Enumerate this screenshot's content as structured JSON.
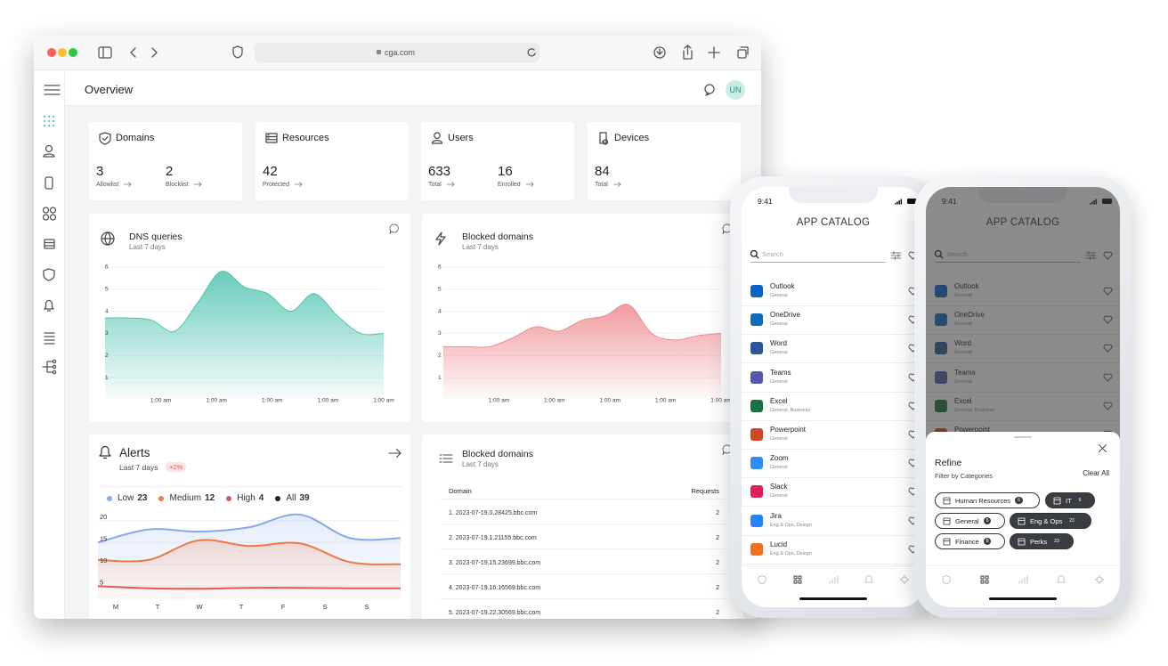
{
  "browser": {
    "url": "cga.com"
  },
  "header": {
    "title": "Overview",
    "avatar": "UN"
  },
  "stats": [
    {
      "title": "Domains",
      "items": [
        {
          "value": 3,
          "label": "Allowlist"
        },
        {
          "value": 2,
          "label": "Blocklist"
        }
      ]
    },
    {
      "title": "Resources",
      "items": [
        {
          "value": 42,
          "label": "Protected"
        }
      ]
    },
    {
      "title": "Users",
      "items": [
        {
          "value": 633,
          "label": "Total"
        },
        {
          "value": 16,
          "label": "Enrolled"
        }
      ]
    },
    {
      "title": "Devices",
      "items": [
        {
          "value": 84,
          "label": "Total"
        }
      ]
    }
  ],
  "dns_chart": {
    "type": "area",
    "title": "DNS queries",
    "subtitle": "Last 7 days",
    "x_labels": [
      "1:00 am",
      "1:00 am",
      "1:00 am",
      "1:00 am",
      "1:00 am"
    ],
    "values": [
      3.7,
      3.7,
      3.6,
      3.1,
      4.4,
      5.8,
      5.1,
      4.8,
      4.0,
      4.8,
      3.8,
      3.0,
      3.0
    ],
    "ylim": [
      0,
      6.4
    ],
    "yticks": [
      1,
      2,
      3,
      4,
      5,
      6
    ],
    "grid": true,
    "color": "#4fc3b0"
  },
  "blocked_chart": {
    "type": "area",
    "title": "Blocked domains",
    "subtitle": "Last 7 days",
    "x_labels": [
      "1:00 am",
      "1:00 am",
      "1:00 am",
      "1:00 am",
      "1:00 am"
    ],
    "values": [
      2.4,
      2.4,
      2.4,
      2.8,
      3.3,
      3.1,
      3.6,
      3.8,
      4.3,
      3.0,
      2.7,
      2.9,
      3.0
    ],
    "ylim": [
      0,
      6.4
    ],
    "yticks": [
      1,
      2,
      3,
      4,
      5,
      6
    ],
    "grid": true,
    "color": "#ee8a8f"
  },
  "alerts": {
    "title": "Alerts",
    "subtitle": "Last 7 days",
    "badge": "+2%",
    "chart": {
      "type": "line",
      "categories": [
        "M",
        "T",
        "W",
        "T",
        "F",
        "S",
        "S"
      ],
      "ylim": [
        2,
        22
      ],
      "yticks": [
        5,
        10,
        15,
        20
      ],
      "grid": true,
      "series": [
        {
          "name": "Low",
          "count": 23,
          "color": "#86a9ec",
          "values": [
            15,
            18,
            17.5,
            18.5,
            21.4,
            16,
            16
          ]
        },
        {
          "name": "Medium",
          "count": 12,
          "color": "#ed7a45",
          "values": [
            11,
            11,
            15.5,
            14.2,
            14.8,
            10.5,
            10
          ]
        },
        {
          "name": "High",
          "count": 4,
          "color": "#e05a5a",
          "values": [
            5,
            4.5,
            4.4,
            4.6,
            4.6,
            4.5,
            4.5
          ]
        }
      ],
      "total": {
        "name": "All",
        "count": 39,
        "color": "#222222"
      }
    }
  },
  "blocked_table": {
    "title": "Blocked domains",
    "subtitle": "Last 7 days",
    "columns": [
      "Domain",
      "Requests"
    ],
    "rows": [
      [
        "1. 2023-07-19.0.28425.bbc.com",
        2
      ],
      [
        "2. 2023-07-19.1.21155.bbc.com",
        2
      ],
      [
        "3. 2023-07-19.15.23699.bbc.com",
        2
      ],
      [
        "4. 2023-07-19.16.16569.bbc.com",
        2
      ],
      [
        "5. 2023-07-19.22.30569.bbc.com",
        2
      ]
    ]
  },
  "catalog": {
    "time": "9:41",
    "title": "APP CATALOG",
    "search": "Search",
    "apps": [
      {
        "name": "Outlook",
        "category": "General",
        "color": "#0a64c8"
      },
      {
        "name": "OneDrive",
        "category": "General",
        "color": "#0f6cbd"
      },
      {
        "name": "Word",
        "category": "General",
        "color": "#2b579a"
      },
      {
        "name": "Teams",
        "category": "General",
        "color": "#5558af"
      },
      {
        "name": "Excel",
        "category": "General, Business",
        "color": "#1d7044"
      },
      {
        "name": "Powerpoint",
        "category": "General",
        "color": "#d24726"
      },
      {
        "name": "Zoom",
        "category": "General",
        "color": "#2d8cff"
      },
      {
        "name": "Slack",
        "category": "General",
        "color": "#e01e5a"
      },
      {
        "name": "Jira",
        "category": "Eng & Ops, Design",
        "color": "#2684ff"
      },
      {
        "name": "Lucid",
        "category": "Eng & Ops, Design",
        "color": "#f37021"
      }
    ]
  },
  "filter": {
    "title": "Refine",
    "subtitle": "Filter by Categories",
    "clear": "Clear All",
    "chips": [
      {
        "label": "Human Resources",
        "count": 6,
        "selected": false
      },
      {
        "label": "IT",
        "count": 6,
        "selected": true
      },
      {
        "label": "General",
        "count": 6,
        "selected": false
      },
      {
        "label": "Eng & Ops",
        "count": 23,
        "selected": true
      },
      {
        "label": "Finance",
        "count": 8,
        "selected": false
      },
      {
        "label": "Perks",
        "count": 23,
        "selected": true
      }
    ]
  }
}
